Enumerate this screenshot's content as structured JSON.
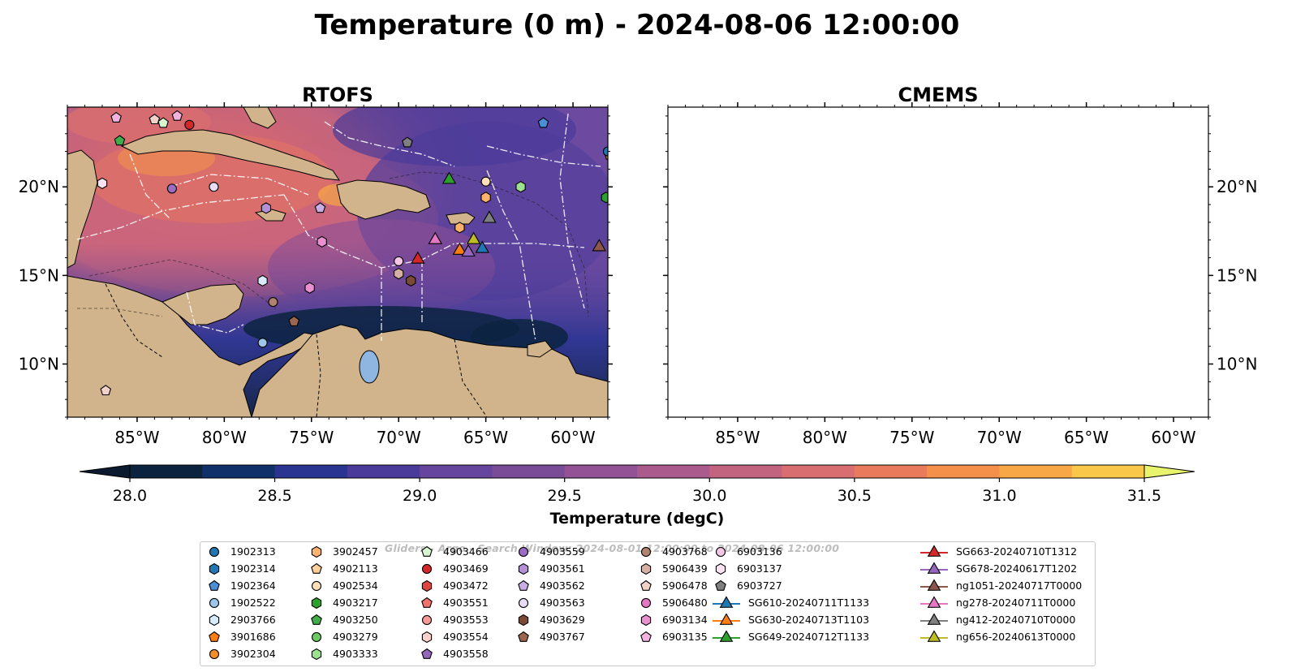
{
  "figure": {
    "title": "Temperature (0 m) - 2024-08-06 12:00:00",
    "panels": [
      {
        "title": "RTOFS"
      },
      {
        "title": "CMEMS"
      }
    ],
    "lon_ticks": [
      "85°W",
      "80°W",
      "75°W",
      "70°W",
      "65°W",
      "60°W"
    ],
    "lat_ticks": [
      "20°N",
      "15°N",
      "10°N"
    ],
    "extent": {
      "lon": [
        -89,
        -58
      ],
      "lat": [
        7,
        24.5
      ]
    },
    "colors": {
      "land": "#d2b48c",
      "lake": "#8fb6e0",
      "ocean_low": "#0d2b45",
      "ocean_high": "#f4e766"
    }
  },
  "colorbar": {
    "label": "Temperature (degC)",
    "ticks": [
      "28.0",
      "28.5",
      "29.0",
      "29.5",
      "30.0",
      "30.5",
      "31.0",
      "31.5"
    ],
    "min": 28.0,
    "max": 31.5,
    "extend": "both",
    "colors": [
      "#0c2340",
      "#10306a",
      "#2a3592",
      "#4a3a9a",
      "#65459d",
      "#7a4c98",
      "#935196",
      "#aa5a8c",
      "#c2637f",
      "#d86e6f",
      "#e97b5c",
      "#f5904b",
      "#f8a746",
      "#f9c74a"
    ],
    "extend_low": "#0b1a2f",
    "extend_high": "#e8f56c"
  },
  "legend": {
    "watermark": "Gliders - Argo - Search Window: 2024-08-01 12:00:00 to 2024-08-06 12:00:00",
    "columns": [
      [
        {
          "label": "1902313",
          "marker": "circle",
          "color": "#1f77b4"
        },
        {
          "label": "1902314",
          "marker": "hexagon",
          "color": "#1f77b4"
        },
        {
          "label": "1902364",
          "marker": "pentagon",
          "color": "#4a8fd6"
        },
        {
          "label": "1902522",
          "marker": "circle",
          "color": "#9ec5ea"
        },
        {
          "label": "2903766",
          "marker": "hexagon",
          "color": "#d8ebfa"
        },
        {
          "label": "3901686",
          "marker": "pentagon",
          "color": "#ff7f0e"
        },
        {
          "label": "3902304",
          "marker": "circle",
          "color": "#f28e2b"
        }
      ],
      [
        {
          "label": "3902457",
          "marker": "hexagon",
          "color": "#ffb26b"
        },
        {
          "label": "4902113",
          "marker": "pentagon",
          "color": "#ffcf99"
        },
        {
          "label": "4902534",
          "marker": "circle",
          "color": "#ffe0b8"
        },
        {
          "label": "4903217",
          "marker": "hexagon",
          "color": "#2ca02c"
        },
        {
          "label": "4903250",
          "marker": "pentagon",
          "color": "#3fae49"
        },
        {
          "label": "4903279",
          "marker": "circle",
          "color": "#6cc964"
        },
        {
          "label": "4903333",
          "marker": "hexagon",
          "color": "#9be18f"
        }
      ],
      [
        {
          "label": "4903466",
          "marker": "pentagon",
          "color": "#d7f5cf"
        },
        {
          "label": "4903469",
          "marker": "circle",
          "color": "#d62728"
        },
        {
          "label": "4903472",
          "marker": "hexagon",
          "color": "#e0443f"
        },
        {
          "label": "4903551",
          "marker": "pentagon",
          "color": "#f0726b"
        },
        {
          "label": "4903553",
          "marker": "circle",
          "color": "#f59a95"
        },
        {
          "label": "4903554",
          "marker": "hexagon",
          "color": "#fbd1cc"
        },
        {
          "label": "4903558",
          "marker": "pentagon",
          "color": "#9467bd"
        }
      ],
      [
        {
          "label": "4903559",
          "marker": "circle",
          "color": "#9a6cc4"
        },
        {
          "label": "4903561",
          "marker": "hexagon",
          "color": "#b491d6"
        },
        {
          "label": "4903562",
          "marker": "pentagon",
          "color": "#c9aee6"
        },
        {
          "label": "4903563",
          "marker": "circle",
          "color": "#e8dcf7"
        },
        {
          "label": "4903629",
          "marker": "hexagon",
          "color": "#7a4a36"
        },
        {
          "label": "4903767",
          "marker": "pentagon",
          "color": "#9a6650"
        }
      ],
      [
        {
          "label": "4903768",
          "marker": "circle",
          "color": "#b08371"
        },
        {
          "label": "5906439",
          "marker": "hexagon",
          "color": "#d6b0a2"
        },
        {
          "label": "5906478",
          "marker": "pentagon",
          "color": "#f0d2c8"
        },
        {
          "label": "5906480",
          "marker": "circle",
          "color": "#e377c2"
        },
        {
          "label": "6903134",
          "marker": "hexagon",
          "color": "#ea8fcf"
        },
        {
          "label": "6903135",
          "marker": "pentagon",
          "color": "#f3b3df"
        }
      ],
      [
        {
          "label": "6903136",
          "marker": "circle",
          "color": "#f6c6e6"
        },
        {
          "label": "6903137",
          "marker": "hexagon",
          "color": "#fbe2f2"
        },
        {
          "label": "6903727",
          "marker": "pentagon",
          "color": "#7f7f7f"
        },
        {
          "label": "SG610-20240711T1133",
          "marker": "triangle",
          "color": "#1f77b4"
        },
        {
          "label": "SG630-20240713T1103",
          "marker": "triangle",
          "color": "#ff7f0e"
        },
        {
          "label": "SG649-20240712T1133",
          "marker": "triangle",
          "color": "#2ca02c"
        }
      ],
      [
        {
          "label": "SG663-20240710T1312",
          "marker": "triangle",
          "color": "#d62728"
        },
        {
          "label": "SG678-20240617T1202",
          "marker": "triangle",
          "color": "#9467bd"
        },
        {
          "label": "ng1051-20240717T0000",
          "marker": "triangle",
          "color": "#8c564b"
        },
        {
          "label": "ng278-20240711T0000",
          "marker": "triangle",
          "color": "#e377c2"
        },
        {
          "label": "ng412-20240710T0000",
          "marker": "triangle",
          "color": "#7f7f7f"
        },
        {
          "label": "ng656-20240613T0000",
          "marker": "triangle",
          "color": "#bcbd22"
        }
      ]
    ]
  },
  "observations": [
    {
      "id": "3901686",
      "lon": -57.9,
      "lat": 21.8
    },
    {
      "id": "1902313",
      "lon": -58.0,
      "lat": 22.0
    },
    {
      "id": "4903217",
      "lon": -58.1,
      "lat": 19.4
    },
    {
      "id": "4903250",
      "lon": -86.0,
      "lat": 22.6
    },
    {
      "id": "4903466",
      "lon": -83.5,
      "lat": 23.6
    },
    {
      "id": "5906478",
      "lon": -84.0,
      "lat": 23.8
    },
    {
      "id": "6903135",
      "lon": -86.2,
      "lat": 23.9
    },
    {
      "id": "6903135",
      "lon": -82.7,
      "lat": 24.0
    },
    {
      "id": "4903469",
      "lon": -82.0,
      "lat": 23.5
    },
    {
      "id": "6903137",
      "lon": -87.0,
      "lat": 20.2
    },
    {
      "id": "4903559",
      "lon": -83.0,
      "lat": 19.9
    },
    {
      "id": "4903563",
      "lon": -80.6,
      "lat": 20.0
    },
    {
      "id": "4903561",
      "lon": -77.6,
      "lat": 18.8
    },
    {
      "id": "4903562",
      "lon": -74.5,
      "lat": 18.8
    },
    {
      "id": "6903727",
      "lon": -69.5,
      "lat": 22.5
    },
    {
      "id": "1902364",
      "lon": -61.7,
      "lat": 23.6
    },
    {
      "id": "4902534",
      "lon": -65.0,
      "lat": 20.3
    },
    {
      "id": "3902457",
      "lon": -65.0,
      "lat": 19.4
    },
    {
      "id": "4903333",
      "lon": -63.0,
      "lat": 20.0
    },
    {
      "id": "3902457",
      "lon": -66.5,
      "lat": 17.7
    },
    {
      "id": "6903134",
      "lon": -74.4,
      "lat": 16.9
    },
    {
      "id": "6903136",
      "lon": -70.0,
      "lat": 15.8
    },
    {
      "id": "5906439",
      "lon": -70.0,
      "lat": 15.1
    },
    {
      "id": "4903629",
      "lon": -69.3,
      "lat": 14.7
    },
    {
      "id": "2903766",
      "lon": -77.8,
      "lat": 14.7
    },
    {
      "id": "6903134",
      "lon": -75.1,
      "lat": 14.3
    },
    {
      "id": "4903768",
      "lon": -77.2,
      "lat": 13.5
    },
    {
      "id": "4903767",
      "lon": -76.0,
      "lat": 12.4
    },
    {
      "id": "1902522",
      "lon": -77.8,
      "lat": 11.2
    },
    {
      "id": "5906478",
      "lon": -86.8,
      "lat": 8.5
    },
    {
      "id": "ng278-20240711T0000",
      "lon": -67.9,
      "lat": 17.0,
      "glider": true
    },
    {
      "id": "SG663-20240710T1312",
      "lon": -68.9,
      "lat": 15.9,
      "glider": true
    },
    {
      "id": "SG630-20240713T1103",
      "lon": -66.5,
      "lat": 16.4,
      "glider": true
    },
    {
      "id": "SG678-20240617T1202",
      "lon": -66.0,
      "lat": 16.3,
      "glider": true
    },
    {
      "id": "SG610-20240711T1133",
      "lon": -65.2,
      "lat": 16.5,
      "glider": true
    },
    {
      "id": "ng656-20240613T0000",
      "lon": -65.7,
      "lat": 17.0,
      "glider": true
    },
    {
      "id": "ng412-20240710T0000",
      "lon": -64.8,
      "lat": 18.2,
      "glider": true
    },
    {
      "id": "SG649-20240712T1133",
      "lon": -67.1,
      "lat": 20.4,
      "glider": true
    },
    {
      "id": "ng1051-20240717T0000",
      "lon": -58.5,
      "lat": 16.6,
      "glider": true
    }
  ]
}
